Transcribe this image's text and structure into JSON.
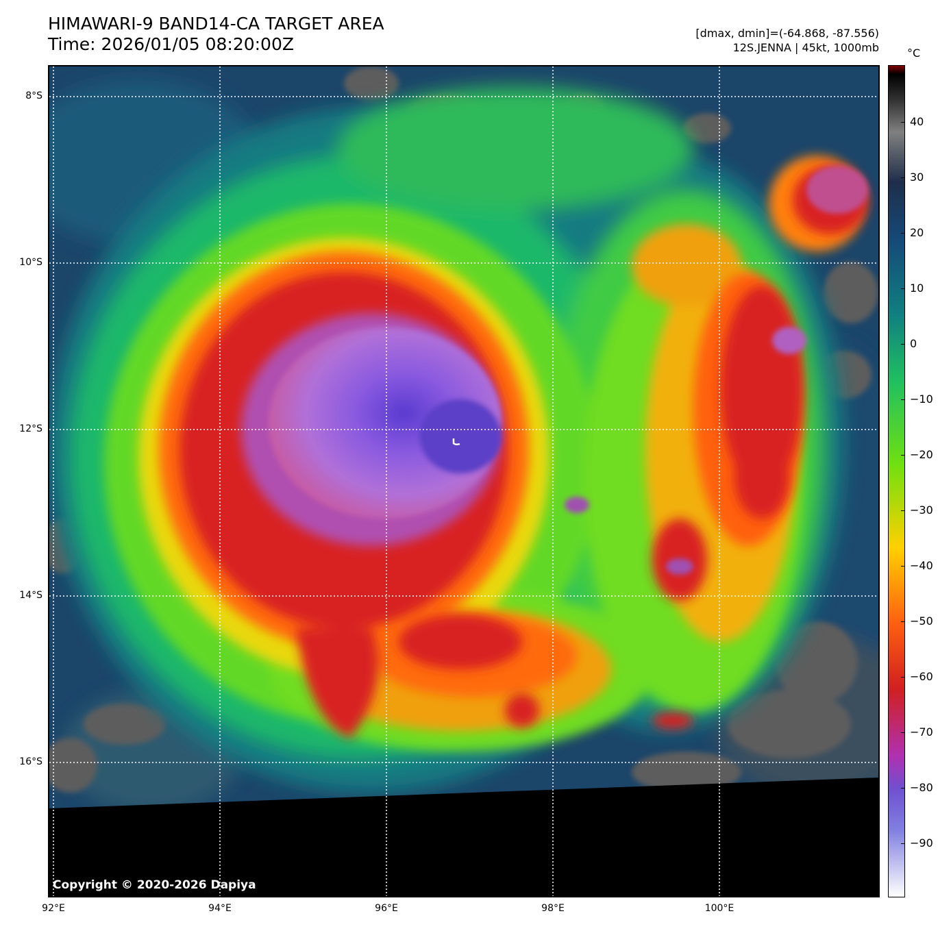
{
  "header": {
    "title": "HIMAWARI-9 BAND14-CA TARGET AREA",
    "time": "Time: 2026/01/05 08:20:00Z",
    "range_text": "[dmax, dmin]=(-64.868, -87.556)",
    "storm_text": "12S.JENNA | 45kt, 1000mb"
  },
  "map": {
    "lat_labels": [
      "8°S",
      "10°S",
      "12°S",
      "14°S",
      "16°S"
    ],
    "lon_labels": [
      "92°E",
      "94°E",
      "96°E",
      "98°E",
      "100°E"
    ],
    "copyright": "Copyright © 2020-2026 Dapiya",
    "center_marker_icon": "storm-center-icon",
    "no_data_color": "#000000"
  },
  "colorbar": {
    "unit": "°C",
    "ticks": [
      "40",
      "30",
      "20",
      "10",
      "0",
      "−10",
      "−20",
      "−30",
      "−40",
      "−50",
      "−60",
      "−70",
      "−80",
      "−90"
    ],
    "colors": [
      "#ffffff",
      "#8080e0",
      "#7050d0",
      "#b030b0",
      "#d02020",
      "#ff6010",
      "#ffd000",
      "#70e010",
      "#20c060",
      "#108080",
      "#154a78",
      "#1e2e4a",
      "#808080",
      "#303030",
      "#000000",
      "#800000"
    ]
  }
}
